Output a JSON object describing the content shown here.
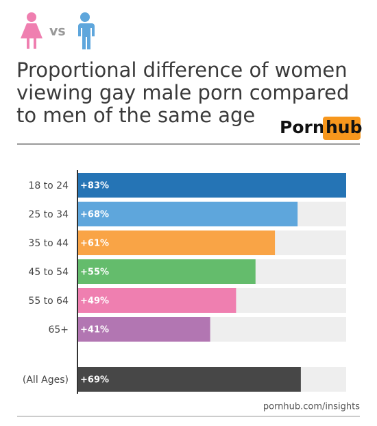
{
  "header": {
    "vs": "vs"
  },
  "logo": {
    "left": "Porn",
    "right": "hub"
  },
  "source": "pornhub.com/insights",
  "chart_data": {
    "type": "bar",
    "title": [
      "Proportional difference of women",
      "viewing gay male porn compared",
      "to men of the same age"
    ],
    "categories": [
      "18 to 24",
      "25 to 34",
      "35 to 44",
      "45 to 54",
      "55 to 64",
      "65+",
      "(All Ages)"
    ],
    "values": [
      83,
      68,
      61,
      55,
      49,
      41,
      69
    ],
    "value_labels": [
      "+83%",
      "+68%",
      "+61%",
      "+55%",
      "+49%",
      "+41%",
      "+69%"
    ],
    "colors": [
      "#2574b5",
      "#5ea6dc",
      "#f9a446",
      "#64bc6c",
      "#ef7fb0",
      "#b276b2",
      "#474747"
    ],
    "xlim": [
      0,
      83
    ]
  }
}
